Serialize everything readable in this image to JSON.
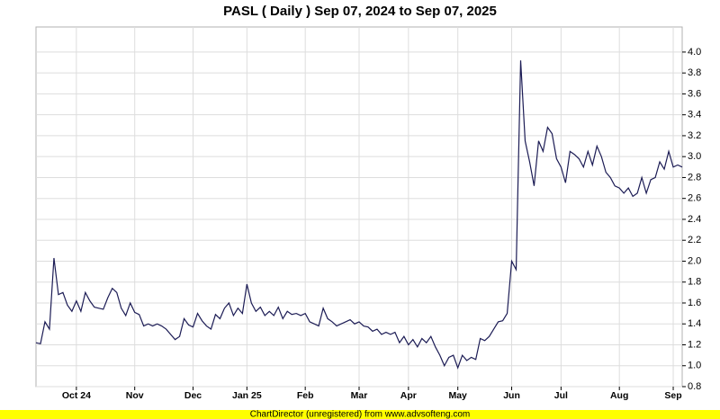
{
  "chart_data": {
    "type": "line",
    "title": "PASL ( Daily ) Sep 07, 2024 to Sep 07, 2025",
    "footer": "ChartDirector (unregistered) from www.advsofteng.com",
    "color": "#1c1c55",
    "grid": true,
    "categories": [
      null,
      null,
      null,
      null,
      null,
      null,
      null,
      null,
      null,
      "Oct 24",
      null,
      null,
      null,
      null,
      null,
      null,
      null,
      null,
      null,
      null,
      null,
      null,
      "Nov",
      null,
      null,
      null,
      null,
      null,
      null,
      null,
      null,
      null,
      null,
      null,
      null,
      "Dec",
      null,
      null,
      null,
      null,
      null,
      null,
      null,
      null,
      null,
      null,
      null,
      "Jan 25",
      null,
      null,
      null,
      null,
      null,
      null,
      null,
      null,
      null,
      null,
      null,
      null,
      "Feb",
      null,
      null,
      null,
      null,
      null,
      null,
      null,
      null,
      null,
      null,
      null,
      "Mar",
      null,
      null,
      null,
      null,
      null,
      null,
      null,
      null,
      null,
      null,
      "Apr",
      null,
      null,
      null,
      null,
      null,
      null,
      null,
      null,
      null,
      null,
      "May",
      null,
      null,
      null,
      null,
      null,
      null,
      null,
      null,
      null,
      null,
      null,
      "Jun",
      null,
      null,
      null,
      null,
      null,
      null,
      null,
      null,
      null,
      null,
      "Jul",
      null,
      null,
      null,
      null,
      null,
      null,
      null,
      null,
      null,
      null,
      null,
      null,
      "Aug",
      null,
      null,
      null,
      null,
      null,
      null,
      null,
      null,
      null,
      null,
      null,
      "Sep",
      null,
      null
    ],
    "values": [
      1.22,
      1.21,
      1.42,
      1.35,
      2.03,
      1.68,
      1.7,
      1.58,
      1.52,
      1.62,
      1.52,
      1.7,
      1.62,
      1.56,
      1.55,
      1.54,
      1.65,
      1.74,
      1.7,
      1.55,
      1.48,
      1.6,
      1.51,
      1.49,
      1.38,
      1.4,
      1.38,
      1.4,
      1.38,
      1.35,
      1.3,
      1.25,
      1.28,
      1.45,
      1.39,
      1.37,
      1.5,
      1.43,
      1.38,
      1.35,
      1.49,
      1.45,
      1.55,
      1.6,
      1.48,
      1.55,
      1.5,
      1.78,
      1.6,
      1.52,
      1.56,
      1.48,
      1.52,
      1.48,
      1.56,
      1.45,
      1.52,
      1.49,
      1.5,
      1.48,
      1.5,
      1.42,
      1.4,
      1.38,
      1.55,
      1.45,
      1.42,
      1.38,
      1.4,
      1.42,
      1.44,
      1.4,
      1.42,
      1.38,
      1.37,
      1.33,
      1.35,
      1.3,
      1.32,
      1.3,
      1.32,
      1.22,
      1.28,
      1.2,
      1.25,
      1.18,
      1.26,
      1.22,
      1.28,
      1.18,
      1.1,
      1.0,
      1.08,
      1.1,
      0.98,
      1.1,
      1.05,
      1.08,
      1.06,
      1.26,
      1.24,
      1.28,
      1.35,
      1.42,
      1.43,
      1.5,
      2.0,
      1.92,
      3.92,
      3.15,
      2.95,
      2.72,
      3.15,
      3.05,
      3.28,
      3.22,
      2.98,
      2.9,
      2.75,
      3.05,
      3.02,
      2.98,
      2.9,
      3.05,
      2.92,
      3.1,
      3.0,
      2.85,
      2.8,
      2.72,
      2.7,
      2.65,
      2.7,
      2.62,
      2.65,
      2.8,
      2.65,
      2.78,
      2.8,
      2.95,
      2.88,
      3.05,
      2.9,
      2.92,
      2.9
    ],
    "ylim": [
      0.8,
      4.24
    ],
    "yticks": [
      0.8,
      {
        "value": 1,
        "label": "1.0"
      },
      1.2,
      1.4,
      1.6,
      1.8,
      {
        "value": 2,
        "label": "2.0"
      },
      2.2,
      2.4,
      2.6,
      2.8,
      {
        "value": 3,
        "label": "3.0"
      },
      3.2,
      3.4,
      3.6,
      3.8,
      {
        "value": 4,
        "label": "4.0"
      }
    ]
  }
}
